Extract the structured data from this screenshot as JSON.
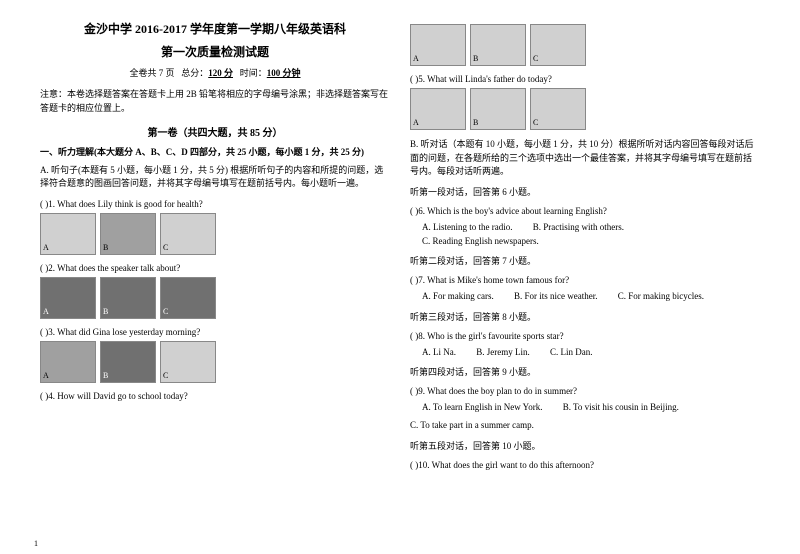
{
  "header": {
    "title": "金沙中学 2016-2017 学年度第一学期八年级英语科",
    "subtitle": "第一次质量检测试题",
    "meta_pages": "全卷共 7 页",
    "meta_total_label": "总分：",
    "meta_total": "120 分",
    "meta_time_label": "时间：",
    "meta_time": "100 分钟",
    "note": "注意：本卷选择题答案在答题卡上用 2B 铅笔将相应的字母编号涂黑；非选择题答案写在答题卡的相应位置上。",
    "section1": "第一卷（共四大题，共 85 分）",
    "part1": "一、听力理解(本大题分 A、B、C、D 四部分，共 25 小题，每小题 1 分，共 25 分)",
    "instrA": "A. 听句子(本题有 5 小题，每小题 1 分，共 5 分) 根据所听句子的内容和所提的问题，选择符合题意的图画回答问题，并将其字母编号填写在题前括号内。每小题听一遍。"
  },
  "left_questions": {
    "q1": "(    )1. What does Lily think is good for health?",
    "q2": "(    )2. What does the speaker talk about?",
    "q3": "(    )3. What did Gina lose yesterday morning?",
    "q4": "(    )4. How will David go to school today?"
  },
  "right_questions": {
    "q5": "(    )5. What will Linda's father do today?",
    "instrB": "B. 听对话（本题有 10 小题，每小题 1 分，共 10 分）根据所听对话内容回答每段对话后面的问题，在各题所给的三个选项中选出一个最佳答案，并将其字母编号填写在题前括号内。每段对话听两遍。",
    "seg1": "听第一段对话，回答第 6 小题。",
    "q6": "(    )6. Which is the boy's advice about learning English?",
    "q6a": "A. Listening to the radio.",
    "q6b": "B. Practising with others.",
    "q6c": "C. Reading English newspapers.",
    "seg2": "听第二段对话，回答第 7 小题。",
    "q7": "(    )7. What is Mike's home town famous for?",
    "q7a": "A. For making cars.",
    "q7b": "B. For its nice weather.",
    "q7c": "C. For making bicycles.",
    "seg3": "听第三段对话，回答第 8 小题。",
    "q8": "(    )8. Who is the girl's favourite sports star?",
    "q8a": "A. Li Na.",
    "q8b": "B. Jeremy Lin.",
    "q8c": "C. Lin Dan.",
    "seg4": "听第四段对话，回答第 9 小题。",
    "q9": "(    )9. What does the boy plan to do in summer?",
    "q9a": "A. To learn English in New York.",
    "q9b": "B. To visit his cousin in Beijing.",
    "q9c": "C. To take part in a summer camp.",
    "seg5": "听第五段对话，回答第 10 小题。",
    "q10": "(    )10. What does the girl want to do this afternoon?"
  },
  "labels": {
    "a": "A",
    "b": "B",
    "c": "C"
  },
  "page_number": "1"
}
